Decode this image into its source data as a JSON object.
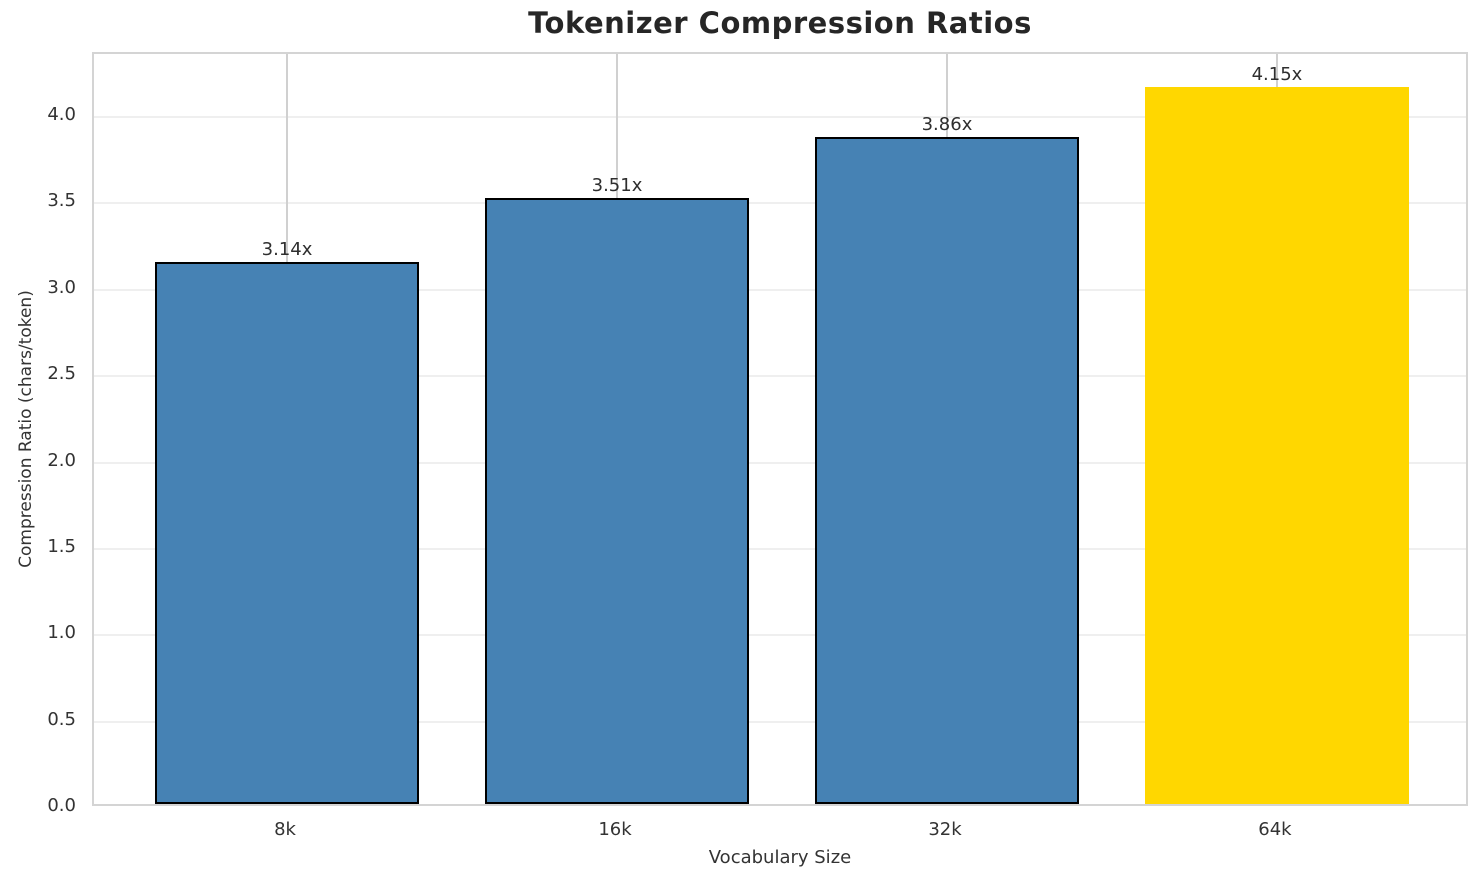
{
  "chart_data": {
    "type": "bar",
    "title": "Tokenizer Compression Ratios",
    "xlabel": "Vocabulary Size",
    "ylabel": "Compression Ratio (chars/token)",
    "categories": [
      "8k",
      "16k",
      "32k",
      "64k"
    ],
    "values": [
      3.14,
      3.51,
      3.86,
      4.15
    ],
    "value_labels": [
      "3.14x",
      "3.51x",
      "3.86x",
      "4.15x"
    ],
    "bar_colors": [
      "#4682B4",
      "#4682B4",
      "#4682B4",
      "#FFD700"
    ],
    "bar_edge_colors": [
      "#000000",
      "#000000",
      "#000000",
      "none"
    ],
    "bar_width_fraction": 0.8,
    "ylim": [
      0,
      4.365
    ],
    "yticks": [
      0.0,
      0.5,
      1.0,
      1.5,
      2.0,
      2.5,
      3.0,
      3.5,
      4.0
    ],
    "ytick_labels": [
      "0.0",
      "0.5",
      "1.0",
      "1.5",
      "2.0",
      "2.5",
      "3.0",
      "3.5",
      "4.0"
    ],
    "grid": true,
    "legend": null,
    "colors": {
      "background": "#ffffff",
      "bar_blue": "#4682B4",
      "bar_gold": "#FFD700",
      "bar_edge": "#000000",
      "spine": "#d4d4d4",
      "grid_horizontal": "#efefef",
      "grid_vertical": "#d0d0d0",
      "title_text": "#262626",
      "tick_text": "#333333",
      "label_text": "#333333"
    }
  }
}
